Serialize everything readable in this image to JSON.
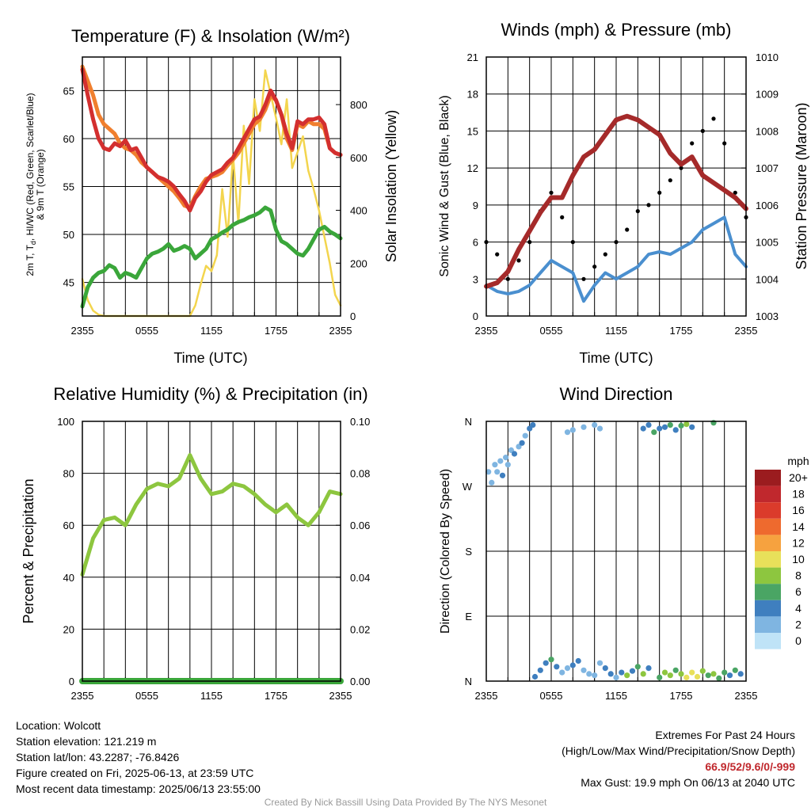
{
  "panels": {
    "temperature": {
      "title": "Temperature (F) & Insolation (W/m²)",
      "ylabel_left": [
        "2m T, T",
        "d",
        ", HI/WC (Red, Green, Scarlet/Blue)",
        "& 9m T (Orange)"
      ],
      "ylabel_right": "Solar Insolation (Yellow)",
      "xlabel": "Time (UTC)"
    },
    "winds": {
      "title": "Winds (mph) & Pressure (mb)",
      "ylabel_left": "Sonic Wind & Gust (Blue, Black)",
      "ylabel_right": "Station Pressure (Maroon)",
      "xlabel": "Time (UTC)"
    },
    "humidity": {
      "title": "Relative Humidity (%) & Precipitation (in)",
      "ylabel_left": "Percent & Precipitation"
    },
    "direction": {
      "title": "Wind Direction",
      "ylabel_left": "Direction (Colored By Speed)"
    }
  },
  "colorbar": {
    "unit": "mph",
    "labels": [
      "20+",
      "18",
      "16",
      "14",
      "12",
      "10",
      "8",
      "6",
      "4",
      "2",
      "0"
    ],
    "colors": [
      "#9b1c1f",
      "#c0282d",
      "#db3b2b",
      "#ee6a2e",
      "#f6a23f",
      "#e8e05a",
      "#8dc63f",
      "#4aa564",
      "#3f7fbf",
      "#7fb5e1",
      "#bfe3f7"
    ]
  },
  "footer": {
    "location": "Location: Wolcott",
    "elevation": "Station elevation: 121.219 m",
    "latlon": "Station lat/lon: 43.2287; -76.8426",
    "created": "Figure created on Fri, 2025-06-13, at 23:59 UTC",
    "recent": "Most recent data timestamp: 2025/06/13 23:55:00",
    "extremes_title": "Extremes For Past 24 Hours",
    "extremes_subtitle": "(High/Low/Max Wind/Precipitation/Snow Depth)",
    "extremes_values": "66.9/52/9.6/0/-999",
    "max_gust": "Max Gust: 19.9 mph On 06/13 at 2040 UTC",
    "credit": "Created By Nick Bassill Using Data Provided By The NYS Mesonet"
  },
  "chart_data": [
    {
      "type": "line",
      "title": "Temperature (F) & Insolation (W/m²)",
      "xlabel": "Time (UTC)",
      "ylabel": "2m T, Td, HI/WC (Red, Green, Scarlet/Blue) & 9m T (Orange)",
      "y2label": "Solar Insolation (Yellow)",
      "x_ticks": [
        "2355",
        "0555",
        "1155",
        "1755",
        "2355"
      ],
      "x_range": [
        0,
        24
      ],
      "ylim": [
        41.5,
        68.5
      ],
      "y_ticks": [
        45,
        50,
        55,
        60,
        65
      ],
      "y2lim": [
        0,
        980
      ],
      "y2_ticks": [
        0,
        200,
        400,
        600,
        800
      ],
      "x": [
        0,
        0.5,
        1,
        1.5,
        2,
        2.5,
        3,
        3.5,
        4,
        4.5,
        5,
        5.5,
        6,
        6.5,
        7,
        7.5,
        8,
        8.5,
        9,
        9.5,
        10,
        10.5,
        11,
        11.5,
        12,
        12.5,
        13,
        13.5,
        14,
        14.5,
        15,
        15.5,
        16,
        16.5,
        17,
        17.5,
        18,
        18.5,
        19,
        19.5,
        20,
        20.5,
        21,
        21.5,
        22,
        22.5,
        23,
        23.5,
        24
      ],
      "series": [
        {
          "name": "2m T",
          "color": "#d32f2f",
          "axis": "left",
          "values": [
            67.2,
            64.5,
            62,
            60,
            59,
            58.8,
            59.5,
            59.2,
            59.8,
            58.8,
            59,
            58,
            57,
            56.5,
            56,
            55.8,
            55.5,
            55,
            54.2,
            53.5,
            52.5,
            53.8,
            54.5,
            55.5,
            56.2,
            56.5,
            56.8,
            57.5,
            58,
            59,
            60,
            61,
            62,
            62.3,
            63.5,
            65,
            64,
            62.5,
            60.5,
            59,
            61.8,
            61.5,
            62,
            62,
            62.2,
            61.5,
            59,
            58.5,
            58.3
          ]
        },
        {
          "name": "9m T",
          "color": "#f07f2e",
          "axis": "left",
          "values": [
            67.5,
            66,
            64.5,
            62.5,
            61.5,
            61,
            60.5,
            59.5,
            59,
            58.8,
            58.3,
            57.5,
            57,
            56.5,
            56,
            55.5,
            55,
            54.5,
            53.8,
            53,
            52.8,
            54,
            55,
            55.8,
            56,
            56.2,
            56.5,
            57.2,
            57.8,
            58.5,
            59.5,
            60.5,
            61.5,
            62,
            63,
            64.5,
            64,
            62.5,
            60,
            58.8,
            61.5,
            61.2,
            61.8,
            61.5,
            61.5,
            61,
            59,
            58.5,
            58.3
          ]
        },
        {
          "name": "Td",
          "color": "#3aa63a",
          "axis": "left",
          "values": [
            42.5,
            44.5,
            45.5,
            46,
            46.2,
            46.8,
            46.5,
            45.5,
            46,
            45.8,
            45.5,
            46.5,
            47.5,
            48,
            48.2,
            48.5,
            49,
            48.3,
            48.5,
            48.8,
            48.5,
            47.5,
            48,
            48.5,
            49.5,
            49.8,
            50.2,
            50.5,
            51,
            51.3,
            51.5,
            51.8,
            52,
            52.3,
            52.8,
            52.5,
            50.5,
            49.3,
            49,
            48.5,
            48,
            47.8,
            48.5,
            49.5,
            50.5,
            50.8,
            50.3,
            50,
            49.6
          ]
        },
        {
          "name": "Solar Insolation",
          "color": "#f3d54e",
          "axis": "right",
          "values": [
            140,
            60,
            20,
            5,
            0,
            0,
            0,
            0,
            0,
            0,
            0,
            0,
            0,
            0,
            0,
            0,
            0,
            0,
            0,
            0,
            0,
            40,
            120,
            190,
            170,
            230,
            480,
            300,
            610,
            350,
            720,
            500,
            820,
            700,
            930,
            840,
            750,
            650,
            820,
            560,
            620,
            680,
            550,
            480,
            400,
            300,
            200,
            80,
            40
          ]
        }
      ]
    },
    {
      "type": "line",
      "title": "Winds (mph) & Pressure (mb)",
      "xlabel": "Time (UTC)",
      "ylabel": "Sonic Wind & Gust (Blue, Black)",
      "y2label": "Station Pressure (Maroon)",
      "x_ticks": [
        "2355",
        "0555",
        "1155",
        "1755",
        "2355"
      ],
      "x_range": [
        0,
        24
      ],
      "ylim": [
        0,
        21
      ],
      "y_ticks": [
        0,
        3,
        6,
        9,
        12,
        15,
        18,
        21
      ],
      "y2lim": [
        1003,
        1010
      ],
      "y2_ticks": [
        1003,
        1004,
        1005,
        1006,
        1007,
        1008,
        1009,
        1010
      ],
      "x": [
        0,
        1,
        2,
        3,
        4,
        5,
        6,
        7,
        8,
        9,
        10,
        11,
        12,
        13,
        14,
        15,
        16,
        17,
        18,
        19,
        20,
        21,
        22,
        23,
        24
      ],
      "series": [
        {
          "name": "Sonic Wind",
          "color": "#4a8fcf",
          "axis": "left",
          "values": [
            2.5,
            2,
            1.8,
            2,
            2.5,
            3.5,
            4.5,
            4,
            3.5,
            1.2,
            2.5,
            3.5,
            3,
            3.5,
            4,
            5,
            5.2,
            5,
            5.5,
            6,
            7,
            7.5,
            8,
            5,
            4
          ]
        },
        {
          "name": "Gust",
          "color": "#000000",
          "axis": "left",
          "values": [
            6,
            5,
            3,
            4.5,
            6,
            8.5,
            10,
            8,
            6,
            3,
            4,
            5,
            6,
            7,
            8.5,
            9,
            10,
            11,
            12,
            14,
            15,
            16,
            14,
            10,
            8
          ]
        },
        {
          "name": "Station Pressure",
          "color": "#a52a2a",
          "axis": "right",
          "values": [
            1003.8,
            1003.9,
            1004.2,
            1004.8,
            1005.3,
            1005.8,
            1006.2,
            1006.2,
            1006.8,
            1007.3,
            1007.5,
            1007.9,
            1008.3,
            1008.4,
            1008.3,
            1008.1,
            1007.9,
            1007.4,
            1007.1,
            1007.3,
            1006.8,
            1006.6,
            1006.4,
            1006.2,
            1005.9
          ]
        }
      ]
    },
    {
      "type": "line",
      "title": "Relative Humidity (%) & Precipitation (in)",
      "ylabel": "Percent & Precipitation",
      "x_ticks": [
        "2355",
        "0555",
        "1155",
        "1755",
        "2355"
      ],
      "x_range": [
        0,
        24
      ],
      "ylim": [
        0,
        100
      ],
      "y_ticks": [
        0,
        20,
        40,
        60,
        80,
        100
      ],
      "y2lim": [
        0,
        0.1
      ],
      "y2_ticks": [
        "0.00",
        "0.02",
        "0.04",
        "0.06",
        "0.08",
        "0.10"
      ],
      "x": [
        0,
        1,
        2,
        3,
        4,
        5,
        6,
        7,
        8,
        9,
        10,
        11,
        12,
        13,
        14,
        15,
        16,
        17,
        18,
        19,
        20,
        21,
        22,
        23,
        24
      ],
      "series": [
        {
          "name": "Relative Humidity",
          "color": "#8dc63f",
          "axis": "left",
          "values": [
            41,
            55,
            62,
            63,
            60,
            68,
            74,
            76,
            75,
            78,
            87,
            78,
            72,
            73,
            76,
            75,
            72,
            68,
            65,
            68,
            63,
            60,
            65,
            73,
            72
          ]
        },
        {
          "name": "Precipitation",
          "color": "#3aa63a",
          "axis": "right",
          "values": [
            0,
            0,
            0,
            0,
            0,
            0,
            0,
            0,
            0,
            0,
            0,
            0,
            0,
            0,
            0,
            0,
            0,
            0,
            0,
            0,
            0,
            0,
            0,
            0,
            0
          ]
        }
      ]
    },
    {
      "type": "scatter",
      "title": "Wind Direction",
      "ylabel": "Direction (Colored By Speed)",
      "x_ticks": [
        "2355",
        "0555",
        "1155",
        "1755",
        "2355"
      ],
      "x_range": [
        0,
        24
      ],
      "y_ticks": [
        "N",
        "E",
        "S",
        "W",
        "N"
      ],
      "ylim": [
        0,
        360
      ],
      "points": [
        [
          0.2,
          290,
          2
        ],
        [
          0.5,
          275,
          1
        ],
        [
          0.8,
          300,
          2
        ],
        [
          1,
          290,
          1
        ],
        [
          1.3,
          305,
          2
        ],
        [
          1.5,
          285,
          3
        ],
        [
          1.8,
          310,
          2
        ],
        [
          2,
          300,
          1
        ],
        [
          2.3,
          320,
          2
        ],
        [
          2.6,
          315,
          3
        ],
        [
          3,
          325,
          2
        ],
        [
          3.3,
          330,
          3
        ],
        [
          3.6,
          340,
          2
        ],
        [
          4,
          350,
          4
        ],
        [
          4.3,
          355,
          3
        ],
        [
          4.5,
          6,
          4
        ],
        [
          5,
          15,
          3
        ],
        [
          5.5,
          25,
          4
        ],
        [
          6,
          30,
          5
        ],
        [
          6.5,
          20,
          3
        ],
        [
          7,
          12,
          2
        ],
        [
          7.5,
          18,
          1
        ],
        [
          8,
          22,
          3
        ],
        [
          8.5,
          28,
          4
        ],
        [
          9,
          15,
          2
        ],
        [
          9.5,
          10,
          1
        ],
        [
          10,
          8,
          1
        ],
        [
          7.5,
          345,
          1
        ],
        [
          8,
          348,
          2
        ],
        [
          9,
          352,
          1
        ],
        [
          10,
          355,
          2
        ],
        [
          10.5,
          350,
          1
        ],
        [
          10.5,
          25,
          2
        ],
        [
          11,
          18,
          3
        ],
        [
          11.5,
          10,
          4
        ],
        [
          12,
          5,
          2
        ],
        [
          12.5,
          12,
          3
        ],
        [
          13,
          8,
          7
        ],
        [
          13.5,
          14,
          4
        ],
        [
          14,
          20,
          6
        ],
        [
          14.5,
          10,
          7
        ],
        [
          15,
          18,
          4
        ],
        [
          14.5,
          350,
          4
        ],
        [
          15,
          355,
          3
        ],
        [
          15.5,
          345,
          5
        ],
        [
          16,
          350,
          4
        ],
        [
          16.5,
          352,
          3
        ],
        [
          17,
          355,
          6
        ],
        [
          17.5,
          348,
          4
        ],
        [
          18,
          354,
          5
        ],
        [
          18.5,
          356,
          7
        ],
        [
          19,
          352,
          3
        ],
        [
          16,
          5,
          6
        ],
        [
          16.5,
          12,
          7
        ],
        [
          17,
          8,
          8
        ],
        [
          17.5,
          15,
          6
        ],
        [
          18,
          10,
          7
        ],
        [
          18.5,
          5,
          9
        ],
        [
          19,
          12,
          10
        ],
        [
          19.5,
          6,
          9
        ],
        [
          20,
          14,
          7
        ],
        [
          20.5,
          8,
          6
        ],
        [
          21,
          10,
          8
        ],
        [
          21.5,
          4,
          5
        ],
        [
          22,
          12,
          6
        ],
        [
          22.5,
          8,
          4
        ],
        [
          23,
          15,
          5
        ],
        [
          23.5,
          10,
          4
        ],
        [
          21,
          358,
          6
        ]
      ]
    }
  ]
}
